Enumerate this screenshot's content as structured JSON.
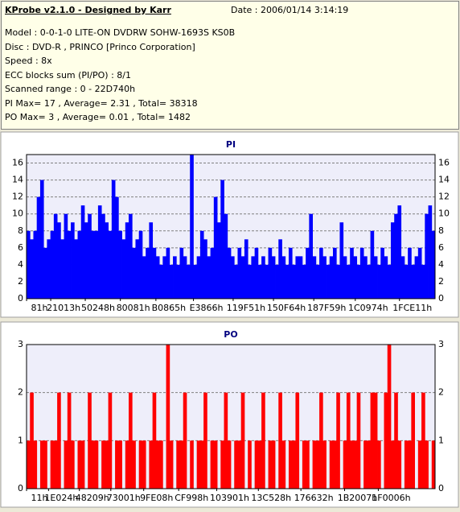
{
  "header": {
    "title": "KProbe v2.1.0 - Designed by Karr",
    "date": "Date : 2006/01/14 3:14:19",
    "lines": [
      "Model : 0-0-1-0 LITE-ON DVDRW SOHW-1693S KS0B",
      "Disc : DVD-R , PRINCO [Princo Corporation]",
      "Speed : 8x",
      "ECC blocks sum (PI/PO) : 8/1",
      "Scanned range : 0 - 22D740h",
      "PI Max= 17 , Average= 2.31 , Total= 38318",
      "PO Max= 3 , Average= 0.01 , Total= 1482"
    ]
  },
  "chart_data": [
    {
      "type": "bar",
      "title": "PI",
      "color": "#0000ff",
      "grid": true,
      "ylim": [
        0,
        17
      ],
      "yticks": [
        0,
        2,
        4,
        6,
        8,
        10,
        12,
        14,
        16
      ],
      "xlim": [
        0,
        2283328
      ],
      "xticks": [
        {
          "value": 129,
          "label": "81h"
        },
        {
          "value": 135187,
          "label": "21013h"
        },
        {
          "value": 328264,
          "label": "50248h"
        },
        {
          "value": 524417,
          "label": "80081h"
        },
        {
          "value": 723045,
          "label": "B0865h"
        },
        {
          "value": 932966,
          "label": "E3866h"
        },
        {
          "value": 1154897,
          "label": "119F51h"
        },
        {
          "value": 1380196,
          "label": "150F64h"
        },
        {
          "value": 1605465,
          "label": "187F59h"
        },
        {
          "value": 1837428,
          "label": "1C0974h"
        },
        {
          "value": 2084369,
          "label": "1FCE11h"
        }
      ],
      "values": [
        8,
        7,
        8,
        12,
        14,
        6,
        7,
        8,
        10,
        9,
        7,
        10,
        8,
        9,
        7,
        8,
        11,
        9,
        10,
        8,
        8,
        11,
        10,
        9,
        8,
        14,
        12,
        8,
        7,
        9,
        10,
        6,
        7,
        8,
        5,
        6,
        9,
        6,
        5,
        4,
        5,
        6,
        4,
        5,
        4,
        6,
        5,
        4,
        17,
        4,
        5,
        8,
        7,
        5,
        6,
        12,
        9,
        14,
        10,
        6,
        5,
        4,
        6,
        5,
        7,
        4,
        5,
        6,
        4,
        5,
        4,
        6,
        5,
        4,
        7,
        5,
        4,
        6,
        4,
        5,
        5,
        4,
        6,
        10,
        5,
        4,
        6,
        5,
        4,
        5,
        6,
        4,
        9,
        5,
        4,
        6,
        5,
        4,
        6,
        5,
        4,
        8,
        5,
        4,
        6,
        5,
        4,
        9,
        10,
        11,
        5,
        4,
        6,
        4,
        5,
        6,
        4,
        10,
        11,
        8
      ]
    },
    {
      "type": "bar",
      "title": "PO",
      "color": "#ff0000",
      "grid": true,
      "ylim": [
        0,
        3
      ],
      "yticks": [
        0,
        1,
        2,
        3
      ],
      "xlim": [
        0,
        2283328
      ],
      "xticks": [
        {
          "value": 17,
          "label": "11h"
        },
        {
          "value": 122916,
          "label": "1E024h"
        },
        {
          "value": 295433,
          "label": "48209h"
        },
        {
          "value": 471041,
          "label": "73001h"
        },
        {
          "value": 654856,
          "label": "9FE08h"
        },
        {
          "value": 850328,
          "label": "CF998h"
        },
        {
          "value": 1063169,
          "label": "103901h"
        },
        {
          "value": 1295656,
          "label": "13C528h"
        },
        {
          "value": 1533490,
          "label": "176632h"
        },
        {
          "value": 1777671,
          "label": "1B2007h"
        },
        {
          "value": 1966086,
          "label": "1F0006h"
        }
      ],
      "values": [
        1,
        2,
        1,
        0,
        1,
        1,
        0,
        1,
        1,
        2,
        0,
        1,
        2,
        1,
        0,
        1,
        1,
        0,
        2,
        1,
        1,
        0,
        1,
        1,
        2,
        0,
        1,
        1,
        0,
        1,
        2,
        1,
        0,
        1,
        1,
        0,
        1,
        2,
        1,
        1,
        0,
        3,
        1,
        0,
        1,
        1,
        2,
        0,
        1,
        0,
        1,
        1,
        2,
        0,
        1,
        1,
        0,
        1,
        2,
        1,
        0,
        1,
        1,
        2,
        0,
        1,
        0,
        1,
        1,
        2,
        0,
        1,
        1,
        0,
        2,
        1,
        0,
        1,
        1,
        2,
        0,
        1,
        1,
        0,
        1,
        1,
        2,
        1,
        0,
        1,
        1,
        2,
        0,
        1,
        2,
        1,
        1,
        2,
        0,
        1,
        1,
        2,
        2,
        1,
        0,
        2,
        3,
        1,
        2,
        1,
        0,
        1,
        1,
        2,
        0,
        1,
        2,
        1,
        0,
        1
      ]
    }
  ]
}
